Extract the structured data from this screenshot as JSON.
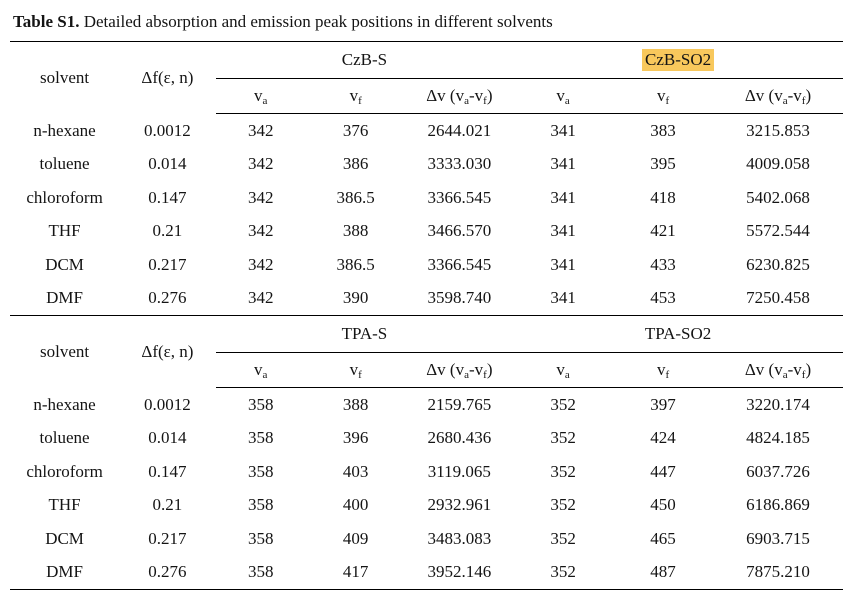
{
  "title": {
    "bold": "Table S1.",
    "rest": " Detailed absorption and emission peak positions in different solvents"
  },
  "highlight_color": "#F8C85C",
  "columns": {
    "solvent": "solvent",
    "df": "Δf(ε, n)",
    "va": {
      "base": "v",
      "sub": "a"
    },
    "vf": {
      "base": "v",
      "sub": "f"
    },
    "dv": {
      "p1": "Δv (v",
      "s1": "a",
      "p2": "-v",
      "s2": "f",
      "p3": ")"
    }
  },
  "tables": [
    {
      "group1": "CzB-S",
      "group2": "CzB-SO2",
      "group2_highlighted": true,
      "rows": [
        {
          "solvent": "n-hexane",
          "df": "0.0012",
          "g1_va": "342",
          "g1_vf": "376",
          "g1_dv": "2644.021",
          "g2_va": "341",
          "g2_vf": "383",
          "g2_dv": "3215.853"
        },
        {
          "solvent": "toluene",
          "df": "0.014",
          "g1_va": "342",
          "g1_vf": "386",
          "g1_dv": "3333.030",
          "g2_va": "341",
          "g2_vf": "395",
          "g2_dv": "4009.058"
        },
        {
          "solvent": "chloroform",
          "df": "0.147",
          "g1_va": "342",
          "g1_vf": "386.5",
          "g1_dv": "3366.545",
          "g2_va": "341",
          "g2_vf": "418",
          "g2_dv": "5402.068"
        },
        {
          "solvent": "THF",
          "df": "0.21",
          "g1_va": "342",
          "g1_vf": "388",
          "g1_dv": "3466.570",
          "g2_va": "341",
          "g2_vf": "421",
          "g2_dv": "5572.544"
        },
        {
          "solvent": "DCM",
          "df": "0.217",
          "g1_va": "342",
          "g1_vf": "386.5",
          "g1_dv": "3366.545",
          "g2_va": "341",
          "g2_vf": "433",
          "g2_dv": "6230.825"
        },
        {
          "solvent": "DMF",
          "df": "0.276",
          "g1_va": "342",
          "g1_vf": "390",
          "g1_dv": "3598.740",
          "g2_va": "341",
          "g2_vf": "453",
          "g2_dv": "7250.458"
        }
      ]
    },
    {
      "group1": "TPA-S",
      "group2": "TPA-SO2",
      "group2_highlighted": false,
      "rows": [
        {
          "solvent": "n-hexane",
          "df": "0.0012",
          "g1_va": "358",
          "g1_vf": "388",
          "g1_dv": "2159.765",
          "g2_va": "352",
          "g2_vf": "397",
          "g2_dv": "3220.174"
        },
        {
          "solvent": "toluene",
          "df": "0.014",
          "g1_va": "358",
          "g1_vf": "396",
          "g1_dv": "2680.436",
          "g2_va": "352",
          "g2_vf": "424",
          "g2_dv": "4824.185"
        },
        {
          "solvent": "chloroform",
          "df": "0.147",
          "g1_va": "358",
          "g1_vf": "403",
          "g1_dv": "3119.065",
          "g2_va": "352",
          "g2_vf": "447",
          "g2_dv": "6037.726"
        },
        {
          "solvent": "THF",
          "df": "0.21",
          "g1_va": "358",
          "g1_vf": "400",
          "g1_dv": "2932.961",
          "g2_va": "352",
          "g2_vf": "450",
          "g2_dv": "6186.869"
        },
        {
          "solvent": "DCM",
          "df": "0.217",
          "g1_va": "358",
          "g1_vf": "409",
          "g1_dv": "3483.083",
          "g2_va": "352",
          "g2_vf": "465",
          "g2_dv": "6903.715"
        },
        {
          "solvent": "DMF",
          "df": "0.276",
          "g1_va": "358",
          "g1_vf": "417",
          "g1_dv": "3952.146",
          "g2_va": "352",
          "g2_vf": "487",
          "g2_dv": "7875.210"
        }
      ]
    }
  ]
}
